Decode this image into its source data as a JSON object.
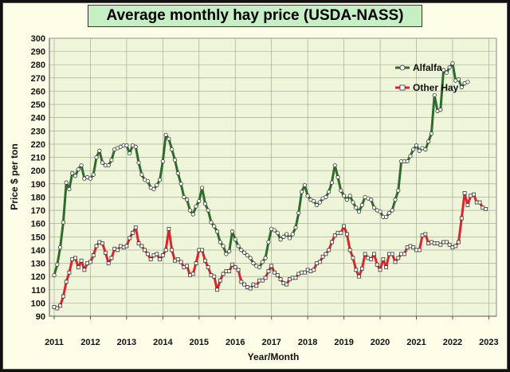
{
  "chart_data": {
    "type": "line",
    "title": "Average monthly hay price (USDA-NASS)",
    "xlabel": "Year/Month",
    "ylabel": "Price $ per ton",
    "ylim": [
      90,
      300
    ],
    "yticks": [
      90,
      100,
      110,
      120,
      130,
      140,
      150,
      160,
      170,
      180,
      190,
      200,
      210,
      220,
      230,
      240,
      250,
      260,
      270,
      280,
      290,
      300
    ],
    "xticks": [
      "2011",
      "2012",
      "2013",
      "2014",
      "2015",
      "2016",
      "2017",
      "2018",
      "2019",
      "2020",
      "2021",
      "2022",
      "2023"
    ],
    "grid": true,
    "legend_position": "top-right",
    "background_color": "#fdfde8",
    "plot_background": "#eef5d8",
    "series": [
      {
        "name": "Alfalfa",
        "color": "#2e6b2e",
        "start_year": 2011,
        "values": [
          121,
          129,
          142,
          161,
          191,
          186,
          198,
          196,
          201,
          204,
          194,
          195,
          194,
          197,
          210,
          215,
          206,
          204,
          204,
          208,
          216,
          217,
          218,
          219,
          219,
          213,
          219,
          218,
          206,
          197,
          193,
          192,
          187,
          186,
          189,
          193,
          207,
          227,
          224,
          216,
          208,
          198,
          190,
          180,
          178,
          170,
          167,
          173,
          177,
          187,
          175,
          170,
          161,
          158,
          154,
          146,
          143,
          137,
          139,
          154,
          148,
          143,
          140,
          138,
          136,
          134,
          130,
          128,
          127,
          131,
          134,
          146,
          156,
          155,
          153,
          148,
          150,
          152,
          149,
          152,
          157,
          168,
          184,
          189,
          181,
          178,
          177,
          174,
          176,
          179,
          180,
          184,
          191,
          204,
          195,
          185,
          181,
          178,
          181,
          176,
          172,
          169,
          174,
          180,
          179,
          178,
          172,
          170,
          169,
          165,
          165,
          168,
          170,
          178,
          185,
          207,
          207,
          207,
          211,
          216,
          219,
          215,
          217,
          216,
          222,
          228,
          257,
          245,
          246,
          276,
          274,
          278,
          281,
          268,
          269,
          263,
          266,
          267
        ]
      },
      {
        "name": "Other Hay",
        "color": "#d9252b",
        "start_year": 2011,
        "values": [
          97,
          96,
          98,
          105,
          116,
          123,
          133,
          134,
          127,
          132,
          125,
          130,
          131,
          136,
          143,
          146,
          145,
          138,
          130,
          134,
          141,
          140,
          143,
          142,
          143,
          149,
          153,
          157,
          145,
          143,
          140,
          137,
          133,
          136,
          137,
          133,
          136,
          140,
          156,
          140,
          132,
          133,
          131,
          127,
          128,
          121,
          122,
          130,
          140,
          140,
          132,
          127,
          121,
          120,
          110,
          117,
          122,
          124,
          124,
          129,
          127,
          125,
          116,
          114,
          112,
          111,
          114,
          113,
          117,
          117,
          119,
          124,
          128,
          123,
          121,
          118,
          115,
          114,
          118,
          119,
          119,
          122,
          123,
          123,
          125,
          124,
          125,
          130,
          131,
          135,
          137,
          140,
          146,
          151,
          153,
          153,
          158,
          152,
          140,
          134,
          125,
          120,
          126,
          137,
          134,
          133,
          137,
          129,
          125,
          133,
          127,
          137,
          137,
          131,
          134,
          137,
          137,
          142,
          143,
          142,
          140,
          140,
          151,
          152,
          145,
          146,
          145,
          145,
          144,
          146,
          146,
          144,
          142,
          143,
          146,
          164,
          183,
          174,
          181,
          182,
          176,
          176,
          172,
          171
        ]
      }
    ]
  }
}
